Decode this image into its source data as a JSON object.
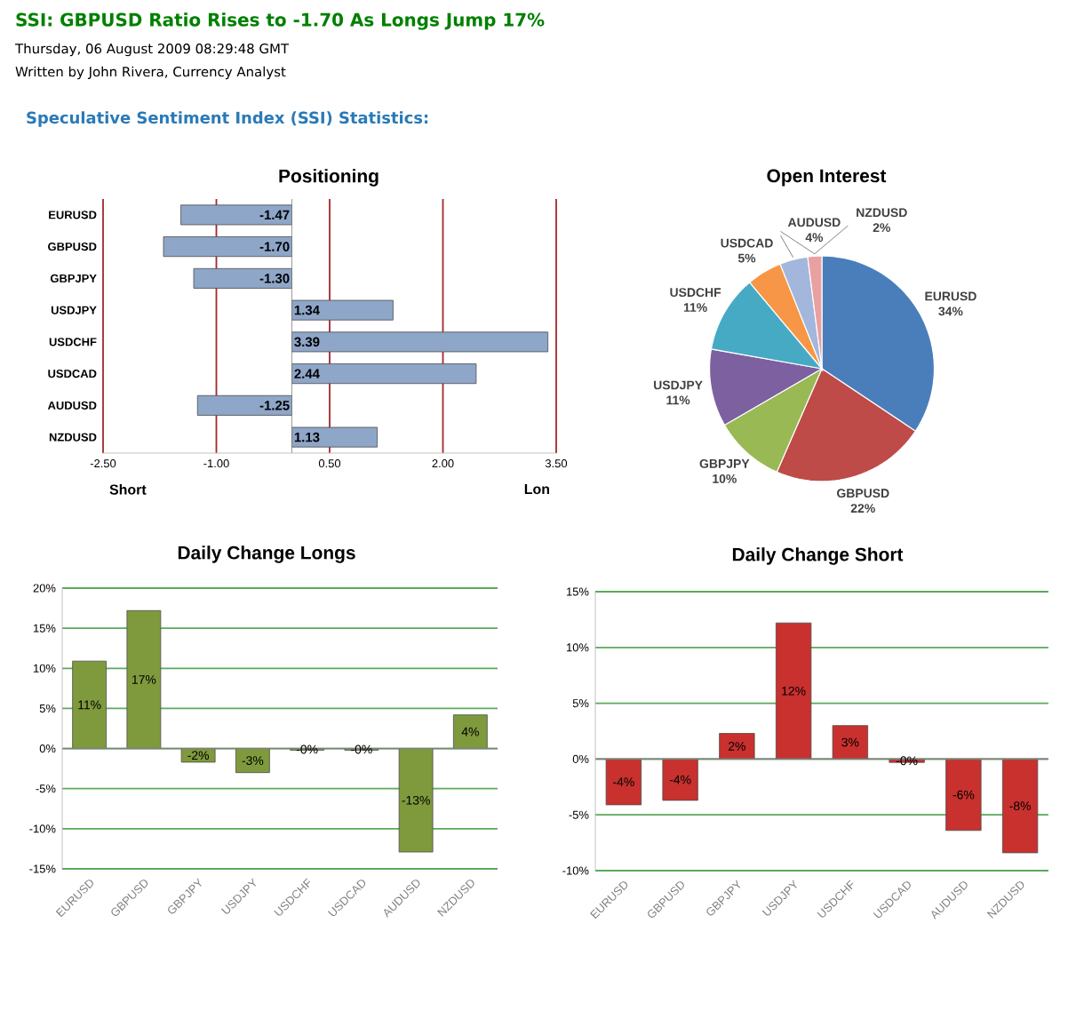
{
  "chart_data": [
    {
      "type": "other",
      "title": "SSI: GBPUSD Ratio Rises to -1.70 As Longs Jump 17%",
      "subtitle": "Thursday, 06 August 2009 08:29:48 GMT",
      "annotations": [
        "Written by John Rivera, Currency Analyst",
        "Speculative Sentiment Index (SSI) Statistics:"
      ]
    },
    {
      "type": "bar",
      "orientation": "horizontal",
      "title": "Positioning",
      "categories": [
        "EURUSD",
        "GBPUSD",
        "GBPJPY",
        "USDJPY",
        "USDCHF",
        "USDCAD",
        "AUDUSD",
        "NZDUSD"
      ],
      "values": [
        -1.47,
        -1.7,
        -1.3,
        1.34,
        3.39,
        2.44,
        -1.25,
        1.13
      ],
      "value_labels": [
        "-1.47",
        "-1.70",
        "-1.30",
        "1.34",
        "3.39",
        "2.44",
        "-1.25",
        "1.13"
      ],
      "color": "#8ea6c8",
      "xlim": [
        -2.5,
        3.5
      ],
      "xticks": [
        {
          "value": -2.5,
          "label": "-2.50"
        },
        {
          "value": -1,
          "label": "-1.00"
        },
        {
          "value": 0.5,
          "label": "0.50"
        },
        {
          "value": 2,
          "label": "2.00"
        },
        {
          "value": 3.5,
          "label": "3.50"
        }
      ],
      "grid": "x",
      "annotations": [
        "Short",
        "Lon"
      ]
    },
    {
      "type": "pie",
      "title": "Open Interest",
      "categories": [
        "EURUSD",
        "GBPUSD",
        "GBPJPY",
        "USDJPY",
        "USDCHF",
        "USDCAD",
        "AUDUSD",
        "NZDUSD"
      ],
      "values": [
        34,
        22,
        10,
        11,
        11,
        5,
        4,
        2
      ],
      "value_labels": [
        "34%",
        "22%",
        "10%",
        "11%",
        "11%",
        "5%",
        "4%",
        "2%"
      ],
      "colors": [
        "#4a7ebb",
        "#be4b48",
        "#98b954",
        "#7d60a0",
        "#46aac5",
        "#f79646",
        "#a3b7dc",
        "#e8a0a0"
      ]
    },
    {
      "type": "bar",
      "title": "Daily Change Longs",
      "categories": [
        "EURUSD",
        "GBPUSD",
        "GBPJPY",
        "USDJPY",
        "USDCHF",
        "USDCAD",
        "AUDUSD",
        "NZDUSD"
      ],
      "values": [
        10.9,
        17.2,
        -1.7,
        -3.0,
        -0.2,
        -0.2,
        -12.9,
        4.2
      ],
      "value_labels": [
        "11%",
        "17%",
        "-2%",
        "-3%",
        "-0%",
        "-0%",
        "-13%",
        "4%"
      ],
      "color": "#7f9a3c",
      "ylim": [
        -15,
        20
      ],
      "yticks": [
        {
          "value": -15,
          "label": "-15%"
        },
        {
          "value": -10,
          "label": "-10%"
        },
        {
          "value": -5,
          "label": "-5%"
        },
        {
          "value": 0,
          "label": "0%"
        },
        {
          "value": 5,
          "label": "5%"
        },
        {
          "value": 10,
          "label": "10%"
        },
        {
          "value": 15,
          "label": "15%"
        },
        {
          "value": 20,
          "label": "20%"
        }
      ],
      "grid": "y"
    },
    {
      "type": "bar",
      "title": "Daily Change Short",
      "categories": [
        "EURUSD",
        "GBPUSD",
        "GBPJPY",
        "USDJPY",
        "USDCHF",
        "USDCAD",
        "AUDUSD",
        "NZDUSD"
      ],
      "values": [
        -4.1,
        -3.7,
        2.3,
        12.2,
        3.0,
        -0.3,
        -6.4,
        -8.4
      ],
      "value_labels": [
        "-4%",
        "-4%",
        "2%",
        "12%",
        "3%",
        "-0%",
        "-6%",
        "-8%"
      ],
      "color": "#c8312e",
      "ylim": [
        -10,
        15
      ],
      "yticks": [
        {
          "value": -10,
          "label": "-10%"
        },
        {
          "value": -5,
          "label": "-5%"
        },
        {
          "value": 0,
          "label": "0%"
        },
        {
          "value": 5,
          "label": "5%"
        },
        {
          "value": 10,
          "label": "10%"
        },
        {
          "value": 15,
          "label": "15%"
        }
      ],
      "grid": "y"
    }
  ]
}
